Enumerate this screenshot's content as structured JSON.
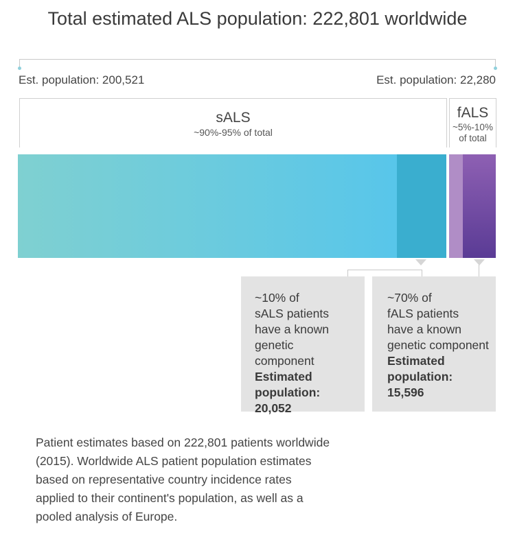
{
  "title": "Total estimated ALS population: 222,801 worldwide",
  "left_estimate": "Est. population: 200,521",
  "right_estimate": "Est. population: 22,280",
  "sals": {
    "title": "sALS",
    "subtitle": "~90%-95% of total"
  },
  "fals": {
    "title": "fALS",
    "subtitle_line1": "~5%-10%",
    "subtitle_line2": "of total"
  },
  "sals_card": {
    "line1": "~10% of",
    "line2": "sALS patients",
    "line3": "have a known",
    "line4": "genetic component",
    "est_line1": "Estimated",
    "est_line2": "population:",
    "est_value": "20,052"
  },
  "fals_card": {
    "line1": "~70% of",
    "line2": "fALS patients",
    "line3": "have a known",
    "line4": "genetic component",
    "est_line1": "Estimated",
    "est_line2": "population:",
    "est_value": "15,596"
  },
  "footnote": "Patient estimates based on 222,801 patients worldwide (2015). Worldwide ALS patient population estimates based on representative country incidence rates applied to their continent's population, as well as a pooled analysis of Europe.",
  "colors": {
    "sals_gradient_start": "#7fd0d1",
    "sals_gradient_end": "#58c6ea",
    "sals_genetic": "#3aaecf",
    "fals_light": "#b08dc6",
    "fals_gradient_start": "#8e60b3",
    "fals_gradient_end": "#5a3b95",
    "card_bg": "#e3e3e3"
  },
  "proportions": {
    "sals_population": 200521,
    "fals_population": 22280,
    "sals_genetic_fraction": 0.1,
    "fals_genetic_fraction": 0.7
  }
}
